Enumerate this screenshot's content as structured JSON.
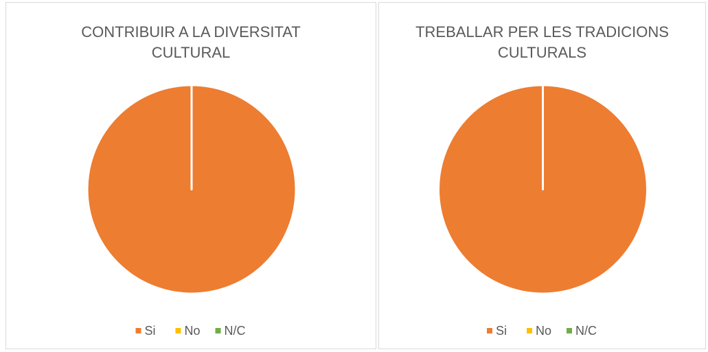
{
  "chart_data": [
    {
      "type": "pie",
      "title": "CONTRIBUIR A LA DIVERSITAT CULTURAL",
      "categories": [
        "Si",
        "No",
        "N/C"
      ],
      "values": [
        100,
        0,
        0
      ],
      "colors": [
        "#ed7d31",
        "#ffc000",
        "#70ad47"
      ],
      "legend": "bottom"
    },
    {
      "type": "pie",
      "title": "TREBALLAR PER LES TRADICIONS CULTURALS",
      "categories": [
        "Si",
        "No",
        "N/C"
      ],
      "values": [
        100,
        0,
        0
      ],
      "colors": [
        "#ed7d31",
        "#ffc000",
        "#70ad47"
      ],
      "legend": "bottom"
    }
  ]
}
